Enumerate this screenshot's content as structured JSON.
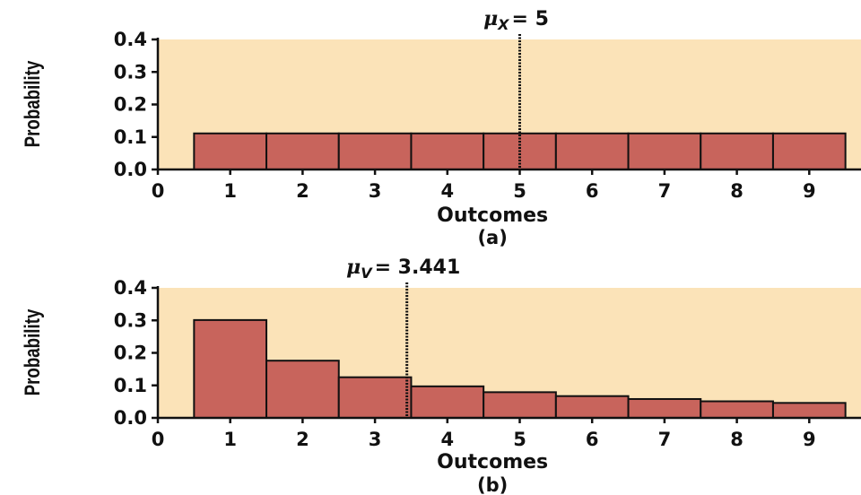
{
  "colors": {
    "background": "#fbe3b8",
    "bar": "#c8645c",
    "axis": "#111111"
  },
  "chart_data": [
    {
      "type": "bar",
      "panel_label": "(a)",
      "mean_label": {
        "symbol": "μ",
        "subscript": "X",
        "text": "= 5"
      },
      "mean_value": 5,
      "xlabel": "Outcomes",
      "ylabel": "Probability",
      "xlim": [
        0,
        9.5
      ],
      "ylim": [
        0,
        0.4
      ],
      "xticks": [
        "0",
        "1",
        "2",
        "3",
        "4",
        "5",
        "6",
        "7",
        "8",
        "9"
      ],
      "yticks": [
        "0.0",
        "0.1",
        "0.2",
        "0.3",
        "0.4"
      ],
      "categories": [
        1,
        2,
        3,
        4,
        5,
        6,
        7,
        8,
        9
      ],
      "values": [
        0.111,
        0.111,
        0.111,
        0.111,
        0.111,
        0.111,
        0.111,
        0.111,
        0.111
      ]
    },
    {
      "type": "bar",
      "panel_label": "(b)",
      "mean_label": {
        "symbol": "μ",
        "subscript": "V",
        "text": "= 3.441"
      },
      "mean_value": 3.441,
      "xlabel": "Outcomes",
      "ylabel": "Probability",
      "xlim": [
        0,
        9.5
      ],
      "ylim": [
        0,
        0.4
      ],
      "xticks": [
        "0",
        "1",
        "2",
        "3",
        "4",
        "5",
        "6",
        "7",
        "8",
        "9"
      ],
      "yticks": [
        "0.0",
        "0.1",
        "0.2",
        "0.3",
        "0.4"
      ],
      "categories": [
        1,
        2,
        3,
        4,
        5,
        6,
        7,
        8,
        9
      ],
      "values": [
        0.301,
        0.176,
        0.125,
        0.097,
        0.079,
        0.067,
        0.058,
        0.051,
        0.046
      ]
    }
  ]
}
